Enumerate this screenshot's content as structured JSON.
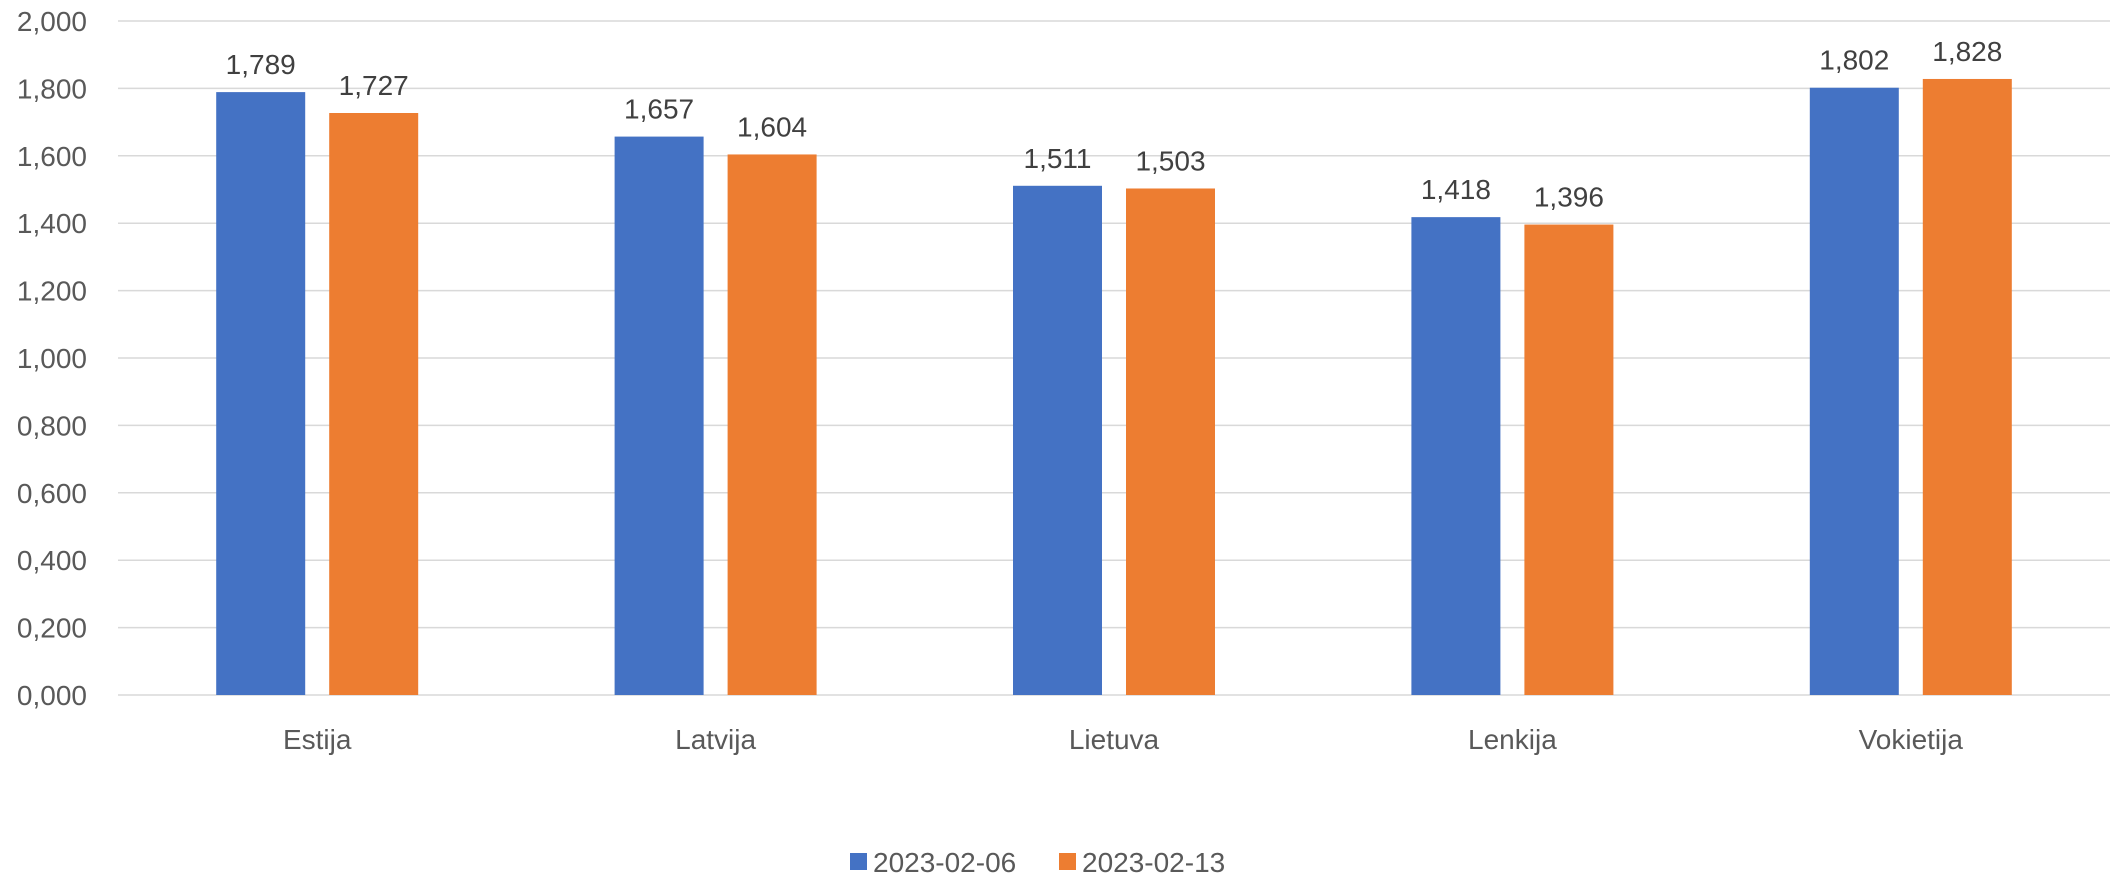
{
  "chart_data": {
    "type": "bar",
    "title": "",
    "xlabel": "",
    "ylabel": "",
    "categories": [
      "Estija",
      "Latvija",
      "Lietuva",
      "Lenkija",
      "Vokietija"
    ],
    "series": [
      {
        "name": "2023-02-06",
        "color": "#4472C4",
        "values": [
          1.789,
          1.657,
          1.511,
          1.418,
          1.802
        ],
        "labels": [
          "1,789",
          "1,657",
          "1,511",
          "1,418",
          "1,802"
        ]
      },
      {
        "name": "2023-02-13",
        "color": "#ED7D31",
        "values": [
          1.727,
          1.604,
          1.503,
          1.396,
          1.828
        ],
        "labels": [
          "1,727",
          "1,604",
          "1,503",
          "1,396",
          "1,828"
        ]
      }
    ],
    "ylim": [
      0,
      2
    ],
    "yticks": [
      0,
      0.2,
      0.4,
      0.6,
      0.8,
      1.0,
      1.2,
      1.4,
      1.6,
      1.8,
      2.0
    ],
    "ytick_labels": [
      "0,000",
      "0,200",
      "0,400",
      "0,600",
      "0,800",
      "1,000",
      "1,200",
      "1,400",
      "1,600",
      "1,800",
      "2,000"
    ],
    "grid": true,
    "legend_position": "bottom-center"
  }
}
